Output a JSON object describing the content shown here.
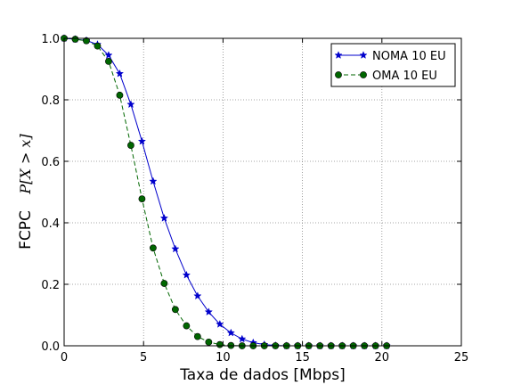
{
  "chart_data": {
    "type": "line",
    "xlabel": "Taxa de dados [Mbps]",
    "ylabel": "FCPC",
    "ylabel_math": "P[X > x]",
    "xlim": [
      0,
      25
    ],
    "ylim": [
      0,
      1
    ],
    "xticks": [
      0,
      5,
      10,
      15,
      20,
      25
    ],
    "yticks": [
      0.0,
      0.2,
      0.4,
      0.6,
      0.8,
      1.0
    ],
    "xtick_labels": [
      "0",
      "5",
      "10",
      "15",
      "20",
      "25"
    ],
    "ytick_labels": [
      "0.0",
      "0.2",
      "0.4",
      "0.6",
      "0.8",
      "1.0"
    ],
    "grid": true,
    "legend_position": "top-right",
    "x": [
      0,
      0.7,
      1.4,
      2.1,
      2.8,
      3.5,
      4.2,
      4.9,
      5.6,
      6.3,
      7.0,
      7.7,
      8.4,
      9.1,
      9.8,
      10.5,
      11.2,
      11.9,
      12.6,
      13.3,
      14.0,
      14.7,
      15.4,
      16.1,
      16.8,
      17.5,
      18.2,
      18.9,
      19.6,
      20.3
    ],
    "series": [
      {
        "name": "NOMA 10 EU",
        "color": "#0000cc",
        "marker": "star",
        "line": "solid",
        "values": [
          1.0,
          0.997,
          0.993,
          0.98,
          0.945,
          0.885,
          0.785,
          0.665,
          0.535,
          0.415,
          0.315,
          0.23,
          0.162,
          0.11,
          0.07,
          0.042,
          0.022,
          0.01,
          0.004,
          0.001,
          0.0,
          0.0,
          0.0,
          0.0,
          0.0,
          0.0,
          0.0,
          0.0,
          0.0,
          0.0
        ]
      },
      {
        "name": "OMA 10 EU",
        "color": "#006600",
        "marker": "circle",
        "line": "dashed",
        "values": [
          1.0,
          0.997,
          0.992,
          0.975,
          0.925,
          0.815,
          0.652,
          0.478,
          0.318,
          0.203,
          0.118,
          0.065,
          0.03,
          0.012,
          0.004,
          0.001,
          0.0,
          0.0,
          0.0,
          0.0,
          0.0,
          0.0,
          0.0,
          0.0,
          0.0,
          0.0,
          0.0,
          0.0,
          0.0,
          0.0
        ]
      }
    ]
  }
}
